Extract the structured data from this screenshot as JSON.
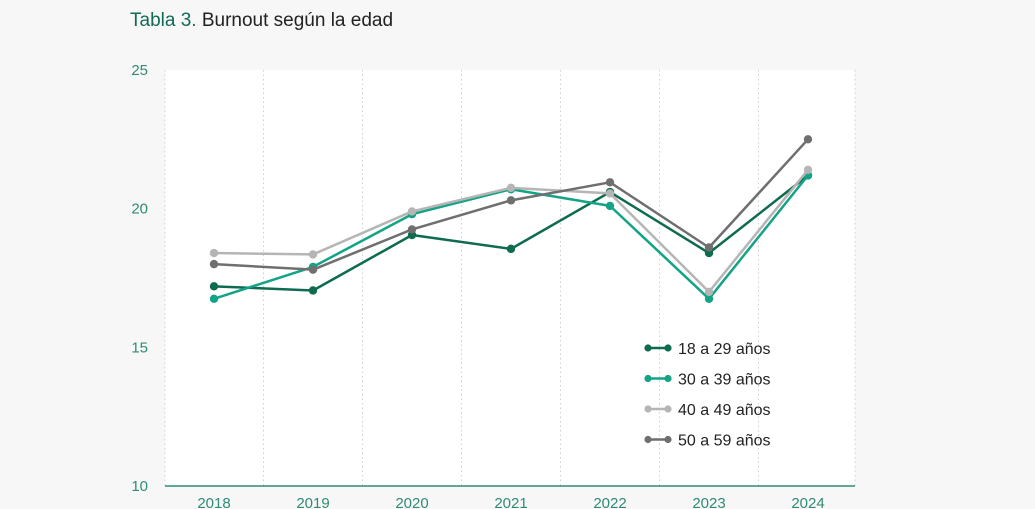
{
  "title": {
    "prefix": "Tabla 3.",
    "text": "Burnout según la edad"
  },
  "chart_data": {
    "type": "line",
    "x": [
      "2018",
      "2019",
      "2020",
      "2021",
      "2022",
      "2023",
      "2024"
    ],
    "ylim": [
      10,
      25
    ],
    "yticks": [
      10,
      15,
      20,
      25
    ],
    "grid": "vertical-dotted",
    "legend_position": "bottom-right",
    "xlabel": "",
    "ylabel": "",
    "series": [
      {
        "name": "18 a 29 años",
        "color": "#0d6b4f",
        "values": [
          17.2,
          17.05,
          19.05,
          18.55,
          20.6,
          18.4,
          21.2
        ]
      },
      {
        "name": "30 a 39 años",
        "color": "#13a386",
        "values": [
          16.75,
          17.9,
          19.8,
          20.7,
          20.1,
          16.75,
          21.2
        ]
      },
      {
        "name": "40 a 49 años",
        "color": "#b5b5b5",
        "values": [
          18.4,
          18.35,
          19.9,
          20.75,
          20.55,
          17.0,
          21.4
        ]
      },
      {
        "name": "50 a 59 años",
        "color": "#6f6f6f",
        "values": [
          18.0,
          17.8,
          19.25,
          20.3,
          20.95,
          18.6,
          22.5
        ]
      }
    ]
  }
}
